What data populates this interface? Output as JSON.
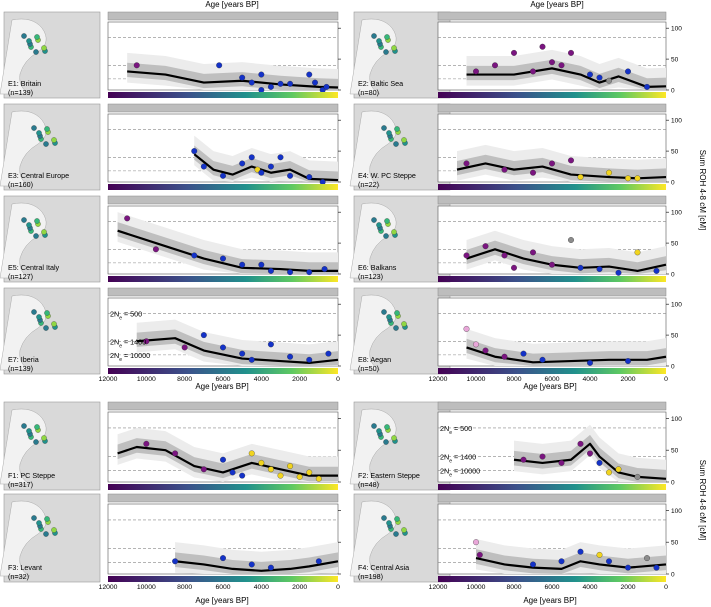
{
  "figure": {
    "top_xlabel_left": "Age [years BP]",
    "top_xlabel_right": "Age [years BP]",
    "right_ylabel": "Sum ROH 4-8 cM [cM]",
    "colors": {
      "purple": "#7a1580",
      "blue": "#1432c8",
      "yellow": "#f1d41f",
      "pink": "#e8a6d8",
      "grey": "#8c8c8c",
      "band_light": "#ececec",
      "band_dark": "#b4b4b4"
    }
  },
  "panels": {
    "e": {
      "label": "e",
      "xlabel": "Age [years BP]",
      "x_ticks": [
        12000,
        10000,
        8000,
        6000,
        4000,
        2000,
        0
      ],
      "y_ticks": [
        0,
        50,
        100
      ],
      "ref_lines": [
        {
          "label": "2N",
          "sub": "e",
          "suffix": " = 500"
        },
        {
          "label": "2N",
          "sub": "e",
          "suffix": " = 1400"
        },
        {
          "label": "2N",
          "sub": "e",
          "suffix": " = 10000"
        }
      ]
    },
    "f": {
      "label": "f",
      "xlabel": "Age [years BP]",
      "x_ticks": [
        12000,
        10000,
        8000,
        6000,
        4000,
        2000,
        0
      ],
      "y_ticks": [
        0,
        50,
        100
      ],
      "ref_lines": [
        {
          "label": "2N",
          "sub": "e",
          "suffix": " = 500"
        },
        {
          "label": "2N",
          "sub": "e",
          "suffix": " = 1400"
        },
        {
          "label": "2N",
          "sub": "e",
          "suffix": " = 10000"
        }
      ]
    }
  },
  "chart_data": [
    {
      "type": "scatter",
      "id": "E1",
      "region": "E1: Britain",
      "n": "(n=139)",
      "xlim": [
        12000,
        0
      ],
      "ylim": [
        0,
        110
      ],
      "trend": [
        [
          11000,
          30
        ],
        [
          9000,
          25
        ],
        [
          7000,
          12
        ],
        [
          5000,
          15
        ],
        [
          3000,
          9
        ],
        [
          1000,
          5
        ],
        [
          0,
          4
        ]
      ],
      "points": [
        [
          10500,
          40,
          "purple"
        ],
        [
          6200,
          40,
          "blue"
        ],
        [
          5000,
          20,
          "blue"
        ],
        [
          4500,
          12,
          "blue"
        ],
        [
          4000,
          25,
          "blue"
        ],
        [
          4000,
          0,
          "blue"
        ],
        [
          3500,
          5,
          "blue"
        ],
        [
          3000,
          10,
          "blue"
        ],
        [
          2500,
          10,
          "blue"
        ],
        [
          1500,
          25,
          "blue"
        ],
        [
          1200,
          12,
          "blue"
        ],
        [
          800,
          0,
          "blue"
        ],
        [
          600,
          5,
          "blue"
        ]
      ]
    },
    {
      "type": "scatter",
      "id": "E2",
      "region": "E2: Baltic Sea",
      "n": "(n=80)",
      "xlim": [
        12000,
        0
      ],
      "ylim": [
        0,
        110
      ],
      "trend": [
        [
          10500,
          25
        ],
        [
          8000,
          25
        ],
        [
          6000,
          35
        ],
        [
          4500,
          25
        ],
        [
          3500,
          12
        ],
        [
          2500,
          22
        ],
        [
          1000,
          5
        ],
        [
          0,
          6
        ]
      ],
      "points": [
        [
          10000,
          30,
          "purple"
        ],
        [
          9000,
          40,
          "purple"
        ],
        [
          8000,
          60,
          "purple"
        ],
        [
          7000,
          30,
          "purple"
        ],
        [
          6500,
          70,
          "purple"
        ],
        [
          6000,
          45,
          "purple"
        ],
        [
          5500,
          40,
          "purple"
        ],
        [
          5000,
          60,
          "purple"
        ],
        [
          4000,
          25,
          "blue"
        ],
        [
          3500,
          20,
          "blue"
        ],
        [
          2000,
          30,
          "blue"
        ],
        [
          1000,
          5,
          "blue"
        ],
        [
          3000,
          15,
          "grey"
        ]
      ]
    },
    {
      "type": "scatter",
      "id": "E3",
      "region": "E3: Central Europe",
      "n": "(n=160)",
      "xlim": [
        12000,
        0
      ],
      "ylim": [
        0,
        110
      ],
      "trend": [
        [
          7500,
          45
        ],
        [
          6500,
          20
        ],
        [
          5500,
          12
        ],
        [
          4500,
          25
        ],
        [
          3500,
          15
        ],
        [
          2500,
          20
        ],
        [
          1500,
          5
        ],
        [
          0,
          3
        ]
      ],
      "points": [
        [
          7500,
          50,
          "blue"
        ],
        [
          7000,
          25,
          "blue"
        ],
        [
          6000,
          10,
          "blue"
        ],
        [
          5000,
          30,
          "blue"
        ],
        [
          4500,
          40,
          "blue"
        ],
        [
          4200,
          20,
          "yellow"
        ],
        [
          4000,
          15,
          "blue"
        ],
        [
          3500,
          25,
          "blue"
        ],
        [
          3000,
          40,
          "blue"
        ],
        [
          2500,
          10,
          "blue"
        ],
        [
          1500,
          8,
          "blue"
        ],
        [
          800,
          0,
          "blue"
        ]
      ]
    },
    {
      "type": "scatter",
      "id": "E4",
      "region": "E4: W. PC Steppe",
      "n": "(n=22)",
      "xlim": [
        12000,
        0
      ],
      "ylim": [
        0,
        110
      ],
      "trend": [
        [
          11000,
          20
        ],
        [
          9500,
          30
        ],
        [
          8000,
          20
        ],
        [
          6500,
          25
        ],
        [
          5000,
          12
        ],
        [
          3000,
          8
        ],
        [
          1500,
          6
        ],
        [
          0,
          8
        ]
      ],
      "points": [
        [
          10500,
          30,
          "purple"
        ],
        [
          8500,
          20,
          "purple"
        ],
        [
          7000,
          15,
          "purple"
        ],
        [
          6000,
          30,
          "purple"
        ],
        [
          5000,
          35,
          "purple"
        ],
        [
          4500,
          8,
          "yellow"
        ],
        [
          3000,
          15,
          "yellow"
        ],
        [
          2000,
          6,
          "yellow"
        ],
        [
          1500,
          6,
          "yellow"
        ]
      ]
    },
    {
      "type": "scatter",
      "id": "E5",
      "region": "E5: Central Italy",
      "n": "(n=127)",
      "xlim": [
        12000,
        0
      ],
      "ylim": [
        0,
        110
      ],
      "trend": [
        [
          11500,
          70
        ],
        [
          9000,
          45
        ],
        [
          7000,
          25
        ],
        [
          5000,
          10
        ],
        [
          3000,
          8
        ],
        [
          1500,
          5
        ],
        [
          0,
          5
        ]
      ],
      "points": [
        [
          11000,
          90,
          "purple"
        ],
        [
          9500,
          40,
          "purple"
        ],
        [
          7500,
          30,
          "blue"
        ],
        [
          6000,
          25,
          "blue"
        ],
        [
          5000,
          15,
          "blue"
        ],
        [
          4000,
          15,
          "blue"
        ],
        [
          3500,
          5,
          "blue"
        ],
        [
          2500,
          3,
          "blue"
        ],
        [
          1500,
          3,
          "blue"
        ],
        [
          700,
          8,
          "blue"
        ]
      ]
    },
    {
      "type": "scatter",
      "id": "E6",
      "region": "E6: Balkans",
      "n": "(n=123)",
      "xlim": [
        12000,
        0
      ],
      "ylim": [
        0,
        110
      ],
      "trend": [
        [
          10500,
          25
        ],
        [
          9000,
          40
        ],
        [
          7500,
          25
        ],
        [
          6000,
          15
        ],
        [
          4500,
          10
        ],
        [
          3000,
          12
        ],
        [
          1500,
          5
        ],
        [
          0,
          15
        ]
      ],
      "points": [
        [
          10500,
          30,
          "purple"
        ],
        [
          9500,
          45,
          "purple"
        ],
        [
          8500,
          30,
          "purple"
        ],
        [
          8000,
          10,
          "purple"
        ],
        [
          7000,
          35,
          "purple"
        ],
        [
          6000,
          15,
          "purple"
        ],
        [
          5000,
          55,
          "grey"
        ],
        [
          4500,
          10,
          "blue"
        ],
        [
          3500,
          8,
          "blue"
        ],
        [
          2500,
          2,
          "blue"
        ],
        [
          1500,
          35,
          "yellow"
        ],
        [
          500,
          5,
          "blue"
        ]
      ]
    },
    {
      "type": "scatter",
      "id": "E7",
      "region": "E7: Iberia",
      "n": "(n=139)",
      "xlim": [
        12000,
        0
      ],
      "ylim": [
        0,
        110
      ],
      "trend": [
        [
          10500,
          40
        ],
        [
          8500,
          45
        ],
        [
          7000,
          25
        ],
        [
          5000,
          12
        ],
        [
          3000,
          8
        ],
        [
          1500,
          5
        ],
        [
          0,
          10
        ]
      ],
      "points": [
        [
          10000,
          40,
          "purple"
        ],
        [
          8000,
          30,
          "purple"
        ],
        [
          7000,
          50,
          "blue"
        ],
        [
          6000,
          30,
          "blue"
        ],
        [
          5000,
          20,
          "blue"
        ],
        [
          4500,
          10,
          "blue"
        ],
        [
          3500,
          35,
          "blue"
        ],
        [
          2500,
          15,
          "blue"
        ],
        [
          1500,
          10,
          "blue"
        ],
        [
          500,
          20,
          "blue"
        ]
      ]
    },
    {
      "type": "scatter",
      "id": "E8",
      "region": "E8: Aegan",
      "n": "(n=50)",
      "xlim": [
        12000,
        0
      ],
      "ylim": [
        0,
        110
      ],
      "trend": [
        [
          10500,
          30
        ],
        [
          9000,
          15
        ],
        [
          7000,
          6
        ],
        [
          5000,
          8
        ],
        [
          3000,
          10
        ],
        [
          1000,
          10
        ],
        [
          0,
          15
        ]
      ],
      "points": [
        [
          10500,
          60,
          "pink"
        ],
        [
          10000,
          35,
          "pink"
        ],
        [
          9500,
          25,
          "purple"
        ],
        [
          8500,
          15,
          "purple"
        ],
        [
          7500,
          20,
          "blue"
        ],
        [
          6500,
          10,
          "blue"
        ],
        [
          4000,
          5,
          "blue"
        ],
        [
          2000,
          8,
          "blue"
        ]
      ]
    },
    {
      "type": "scatter",
      "id": "F1",
      "region": "F1: PC Steppe",
      "n": "(n=317)",
      "xlim": [
        12000,
        0
      ],
      "ylim": [
        0,
        110
      ],
      "trend": [
        [
          11500,
          45
        ],
        [
          10500,
          55
        ],
        [
          9000,
          50
        ],
        [
          7500,
          25
        ],
        [
          6000,
          15
        ],
        [
          4500,
          30
        ],
        [
          3000,
          20
        ],
        [
          1500,
          10
        ],
        [
          0,
          10
        ]
      ],
      "points": [
        [
          10000,
          60,
          "purple"
        ],
        [
          8500,
          45,
          "purple"
        ],
        [
          7000,
          20,
          "purple"
        ],
        [
          6000,
          35,
          "blue"
        ],
        [
          5500,
          15,
          "blue"
        ],
        [
          5000,
          10,
          "blue"
        ],
        [
          4500,
          45,
          "yellow"
        ],
        [
          4000,
          30,
          "yellow"
        ],
        [
          3500,
          20,
          "yellow"
        ],
        [
          3000,
          10,
          "yellow"
        ],
        [
          2500,
          25,
          "yellow"
        ],
        [
          2000,
          8,
          "yellow"
        ],
        [
          1500,
          15,
          "yellow"
        ],
        [
          1000,
          5,
          "yellow"
        ]
      ]
    },
    {
      "type": "scatter",
      "id": "F2",
      "region": "F2: Eastern Steppe",
      "n": "(n=48)",
      "xlim": [
        12000,
        0
      ],
      "ylim": [
        0,
        110
      ],
      "trend": [
        [
          8000,
          35
        ],
        [
          6500,
          30
        ],
        [
          5000,
          35
        ],
        [
          4000,
          60
        ],
        [
          3500,
          40
        ],
        [
          2500,
          15
        ],
        [
          1500,
          8
        ],
        [
          0,
          5
        ]
      ],
      "points": [
        [
          7500,
          35,
          "purple"
        ],
        [
          6500,
          40,
          "purple"
        ],
        [
          5500,
          30,
          "purple"
        ],
        [
          4500,
          60,
          "purple"
        ],
        [
          4000,
          45,
          "purple"
        ],
        [
          3500,
          30,
          "blue"
        ],
        [
          3000,
          15,
          "yellow"
        ],
        [
          2500,
          20,
          "yellow"
        ],
        [
          1500,
          8,
          "grey"
        ]
      ]
    },
    {
      "type": "scatter",
      "id": "F3",
      "region": "F3: Levant",
      "n": "(n=32)",
      "xlim": [
        12000,
        0
      ],
      "ylim": [
        0,
        110
      ],
      "trend": [
        [
          8500,
          20
        ],
        [
          7000,
          15
        ],
        [
          5500,
          8
        ],
        [
          4000,
          5
        ],
        [
          2500,
          8
        ],
        [
          1500,
          12
        ],
        [
          0,
          20
        ]
      ],
      "points": [
        [
          8500,
          20,
          "blue"
        ],
        [
          6000,
          25,
          "blue"
        ],
        [
          4500,
          15,
          "blue"
        ],
        [
          3500,
          10,
          "blue"
        ],
        [
          1000,
          20,
          "blue"
        ]
      ]
    },
    {
      "type": "scatter",
      "id": "F4",
      "region": "F4: Central Asia",
      "n": "(n=198)",
      "xlim": [
        12000,
        0
      ],
      "ylim": [
        0,
        110
      ],
      "trend": [
        [
          10000,
          25
        ],
        [
          8500,
          15
        ],
        [
          7000,
          10
        ],
        [
          5500,
          8
        ],
        [
          4500,
          20
        ],
        [
          3500,
          15
        ],
        [
          2000,
          10
        ],
        [
          0,
          15
        ]
      ],
      "points": [
        [
          10000,
          50,
          "pink"
        ],
        [
          9800,
          30,
          "purple"
        ],
        [
          7000,
          15,
          "blue"
        ],
        [
          5500,
          20,
          "blue"
        ],
        [
          4500,
          35,
          "blue"
        ],
        [
          3500,
          30,
          "yellow"
        ],
        [
          3000,
          20,
          "blue"
        ],
        [
          2000,
          10,
          "blue"
        ],
        [
          1000,
          25,
          "grey"
        ],
        [
          500,
          10,
          "blue"
        ]
      ]
    }
  ]
}
